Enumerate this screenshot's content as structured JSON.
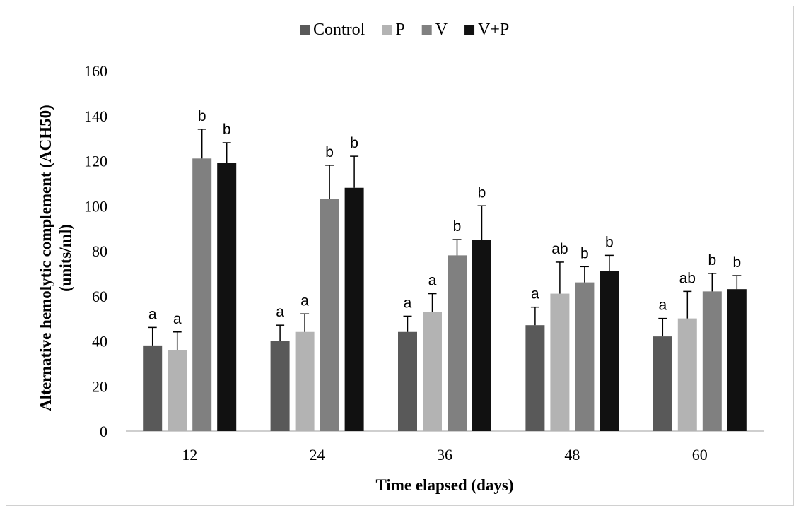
{
  "chart_data": {
    "type": "bar",
    "title": "",
    "xlabel": "Time elapsed (days)",
    "ylabel_line1": "Alternative hemolytic complement (ACH50)",
    "ylabel_line2": "(units/ml)",
    "categories": [
      "12",
      "24",
      "36",
      "48",
      "60"
    ],
    "ylim": [
      0,
      160
    ],
    "yticks": [
      0,
      20,
      40,
      60,
      80,
      100,
      120,
      140,
      160
    ],
    "grid": false,
    "legend_position": "top",
    "series": [
      {
        "name": "Control",
        "color": "#595959",
        "values": [
          38,
          40,
          44,
          47,
          42
        ],
        "errors": [
          8,
          7,
          7,
          8,
          8
        ],
        "sig": [
          "a",
          "a",
          "a",
          "a",
          "a"
        ]
      },
      {
        "name": "P",
        "color": "#b3b3b3",
        "values": [
          36,
          44,
          53,
          61,
          50
        ],
        "errors": [
          8,
          8,
          8,
          14,
          12
        ],
        "sig": [
          "a",
          "a",
          "a",
          "ab",
          "ab"
        ]
      },
      {
        "name": "V",
        "color": "#808080",
        "values": [
          121,
          103,
          78,
          66,
          62
        ],
        "errors": [
          13,
          15,
          7,
          7,
          8
        ],
        "sig": [
          "b",
          "b",
          "b",
          "b",
          "b"
        ]
      },
      {
        "name": "V+P",
        "color": "#111111",
        "values": [
          119,
          108,
          85,
          71,
          63
        ],
        "errors": [
          9,
          14,
          15,
          7,
          6
        ],
        "sig": [
          "b",
          "b",
          "b",
          "b",
          "b"
        ]
      }
    ]
  }
}
